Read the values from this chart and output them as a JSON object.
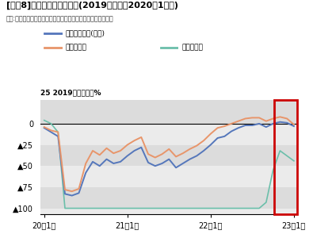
{
  "title_bracket": "[図表8]",
  "title_main": "延べ宿泊者数の推移(2019年対比、2020年1月〜)",
  "subtitle": "出所:「宿泊旅行統計調査」をもとにニッセイ基礎研究所が作成",
  "ylabel_prefix": "25 ",
  "ylabel_text": "2019年同月比、%",
  "legend1_label": "延べ宿泊者数(全体)",
  "legend2_label": "うち日本人",
  "legend3_label": "うち外国人",
  "colors": [
    "#5577BB",
    "#E8956A",
    "#6BBFAA"
  ],
  "highlight_color": "#CC0000",
  "ylim": [
    -107,
    28
  ],
  "yticks": [
    0,
    -25,
    -50,
    -75,
    -100
  ],
  "ytick_labels": [
    "0",
    "▲25",
    "▲50",
    "▲75",
    "▲100"
  ],
  "xtick_positions": [
    0,
    12,
    24,
    36
  ],
  "xtick_labels": [
    "20年1月",
    "21年1月",
    "22年1月",
    "23年1月"
  ],
  "total": [
    -5,
    -10,
    -15,
    -83,
    -85,
    -82,
    -58,
    -45,
    -50,
    -42,
    -47,
    -45,
    -38,
    -32,
    -28,
    -46,
    -50,
    -47,
    -42,
    -52,
    -47,
    -42,
    -38,
    -32,
    -25,
    -17,
    -15,
    -9,
    -5,
    -2,
    -2,
    0,
    -4,
    0,
    2,
    1,
    -3
  ],
  "japanese": [
    -4,
    -8,
    -10,
    -78,
    -80,
    -77,
    -47,
    -32,
    -37,
    -29,
    -35,
    -32,
    -25,
    -20,
    -16,
    -36,
    -40,
    -36,
    -30,
    -39,
    -35,
    -30,
    -26,
    -20,
    -12,
    -5,
    -3,
    0,
    3,
    6,
    7,
    7,
    3,
    6,
    8,
    6,
    -1
  ],
  "foreign": [
    4,
    0,
    -10,
    -100,
    -100,
    -100,
    -100,
    -100,
    -100,
    -100,
    -100,
    -100,
    -100,
    -100,
    -100,
    -100,
    -100,
    -100,
    -100,
    -100,
    -100,
    -100,
    -100,
    -100,
    -100,
    -100,
    -100,
    -100,
    -100,
    -100,
    -100,
    -100,
    -93,
    -55,
    -32,
    -38,
    -44
  ]
}
